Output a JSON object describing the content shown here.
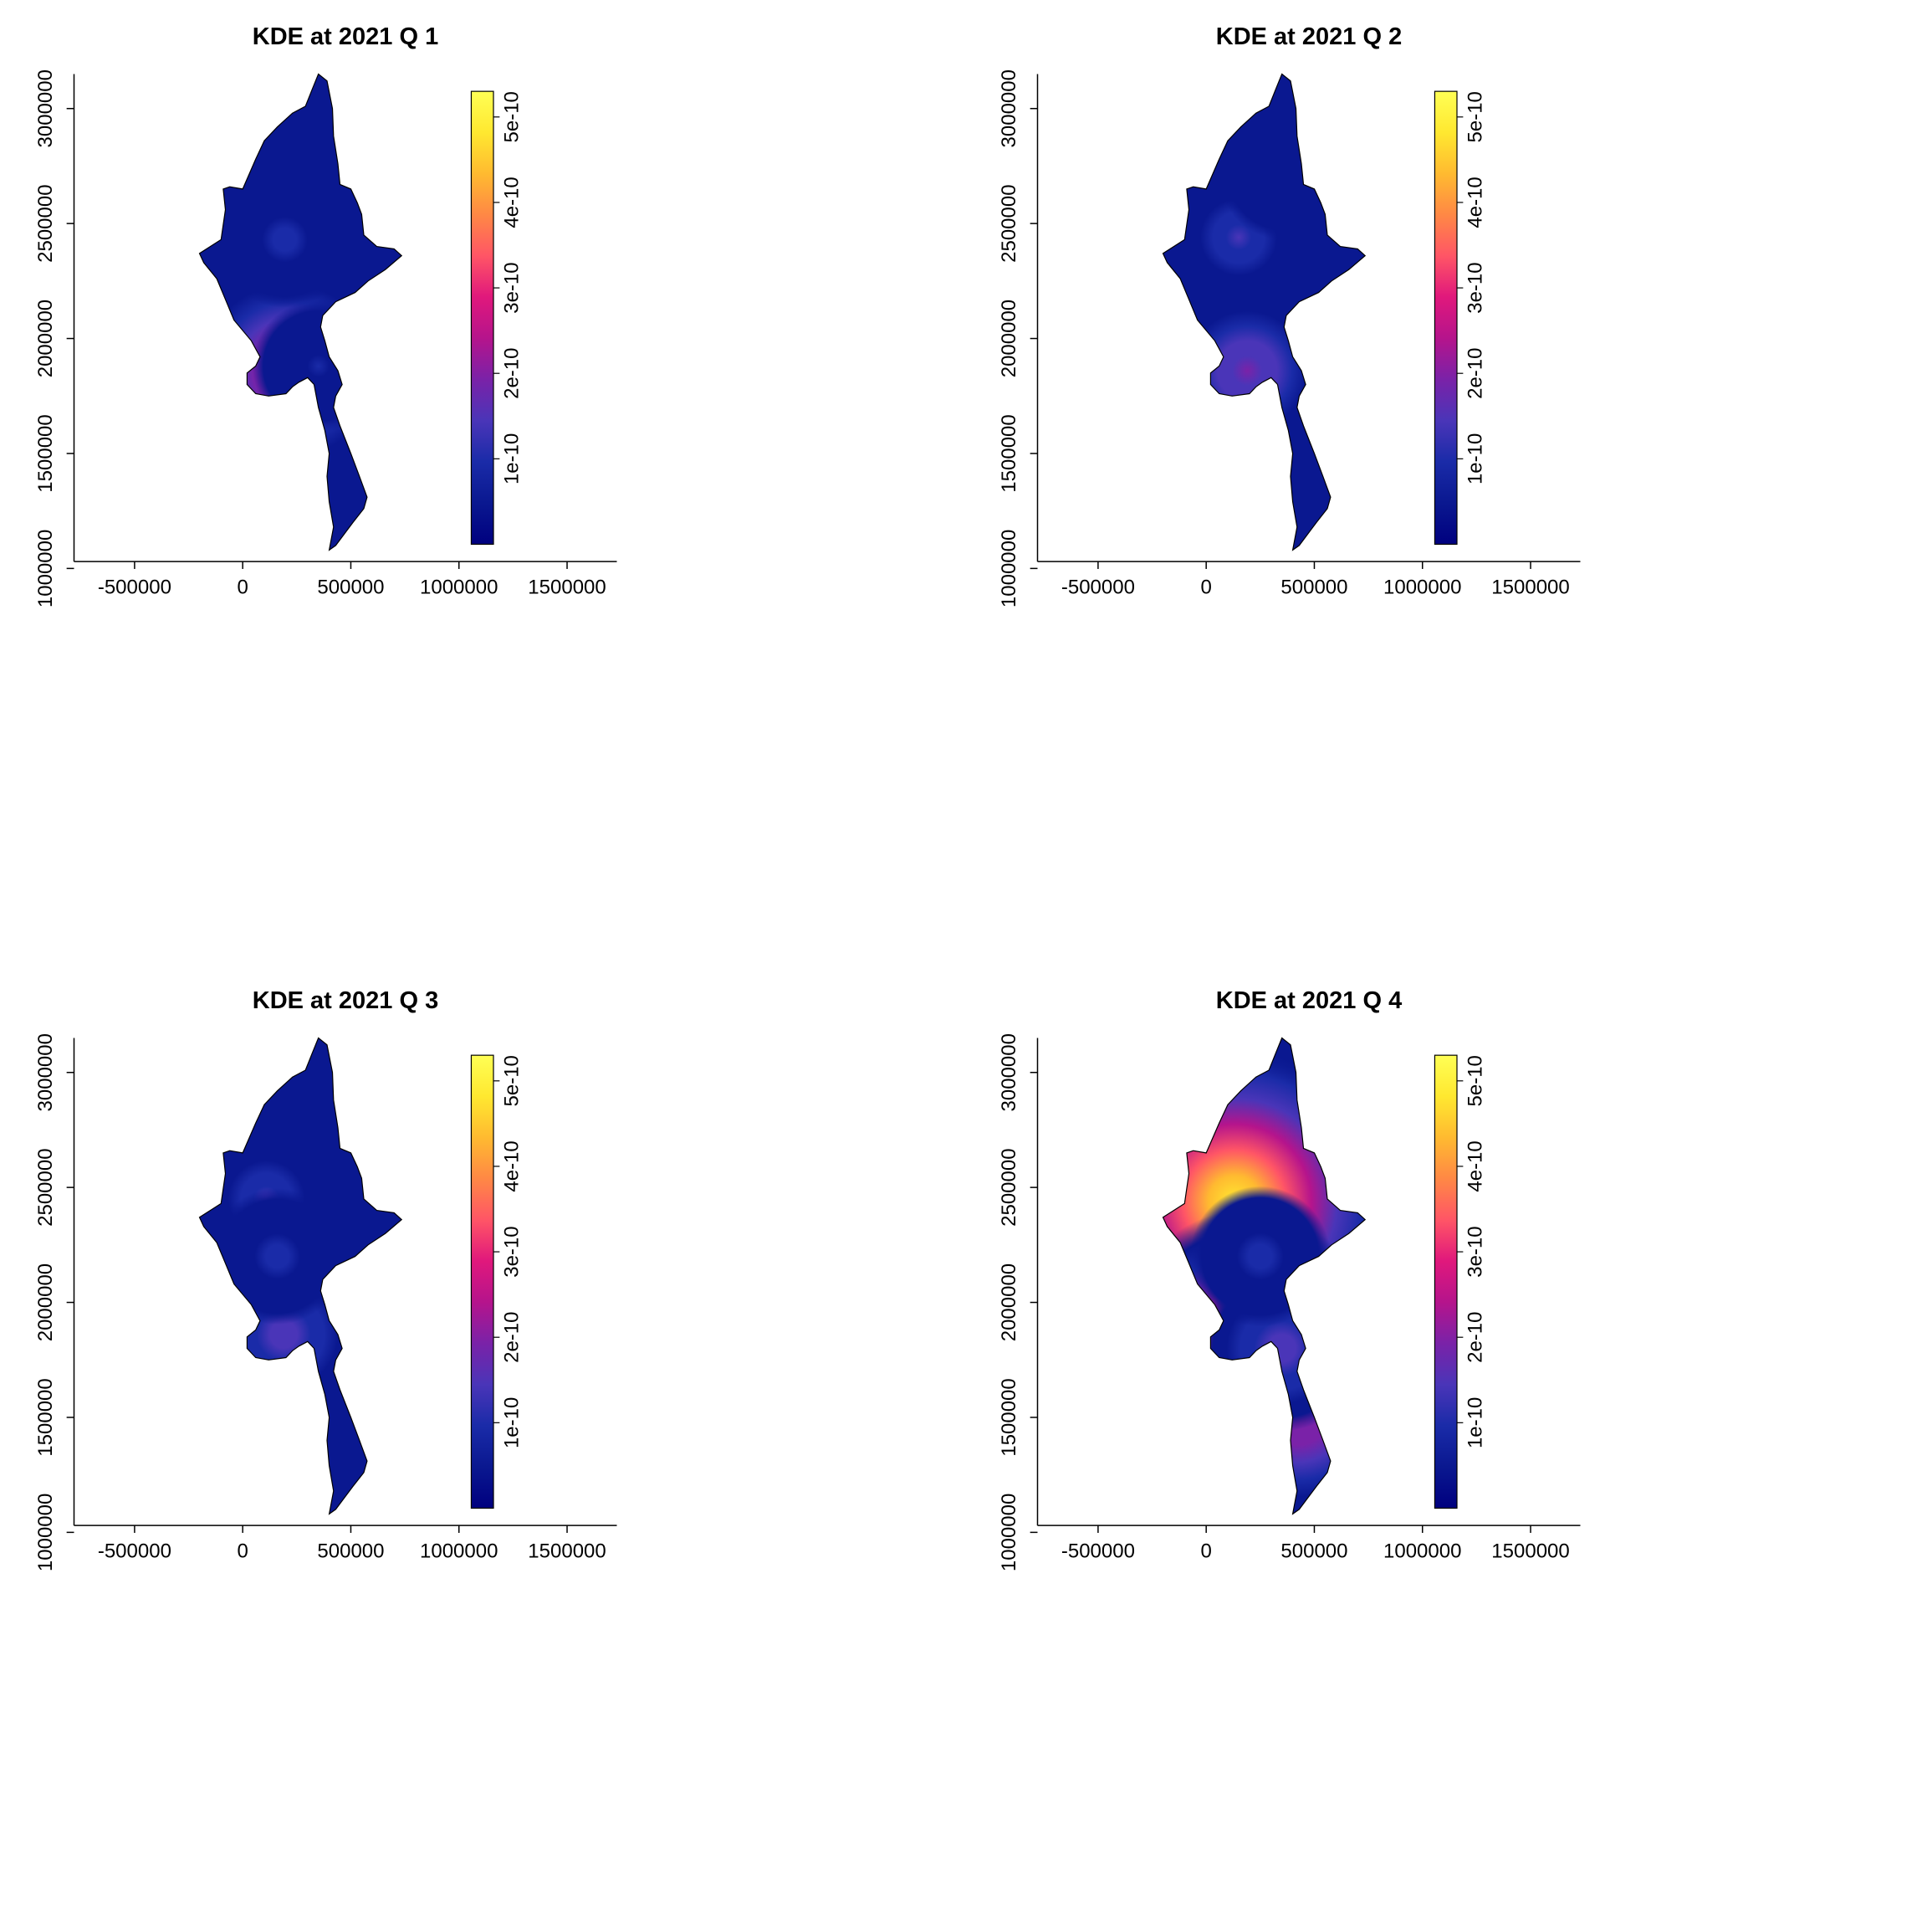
{
  "palette": [
    "#00007f",
    "#0a1890",
    "#1a2ba8",
    "#4a35b8",
    "#7a22a8",
    "#b5148c",
    "#e0187c",
    "#ff5566",
    "#ff8845",
    "#ffba30",
    "#ffe830",
    "#ffff55"
  ],
  "chart_data": [
    {
      "type": "heatmap",
      "title": "KDE at 2021 Q 1",
      "x_ticks": [
        "-500000",
        "0",
        "500000",
        "1000000",
        "1500000"
      ],
      "y_ticks": [
        "1000000",
        "1500000",
        "2000000",
        "2500000",
        "3000000"
      ],
      "colorbar": {
        "ticks": [
          "1e-10",
          "2e-10",
          "3e-10",
          "4e-10",
          "5e-10"
        ],
        "range": [
          0,
          5.3e-10
        ]
      },
      "hotspots": [
        {
          "x": 215000,
          "y": 1860000,
          "peak": 2.6e-10
        },
        {
          "x": 195000,
          "y": 2430000,
          "peak": 9e-11
        },
        {
          "x": 350000,
          "y": 1880000,
          "peak": 8e-11
        }
      ]
    },
    {
      "type": "heatmap",
      "title": "KDE at 2021 Q 2",
      "x_ticks": [
        "-500000",
        "0",
        "500000",
        "1000000",
        "1500000"
      ],
      "y_ticks": [
        "1000000",
        "1500000",
        "2000000",
        "2500000",
        "3000000"
      ],
      "colorbar": {
        "ticks": [
          "1e-10",
          "2e-10",
          "3e-10",
          "4e-10",
          "5e-10"
        ],
        "range": [
          0,
          5.3e-10
        ]
      },
      "hotspots": [
        {
          "x": 150000,
          "y": 2440000,
          "peak": 1.3e-10
        },
        {
          "x": 190000,
          "y": 1860000,
          "peak": 1.9e-10
        },
        {
          "x": 350000,
          "y": 2700000,
          "peak": 6e-11
        }
      ]
    },
    {
      "type": "heatmap",
      "title": "KDE at 2021 Q 3",
      "x_ticks": [
        "-500000",
        "0",
        "500000",
        "1000000",
        "1500000"
      ],
      "y_ticks": [
        "1000000",
        "1500000",
        "2000000",
        "2500000",
        "3000000"
      ],
      "colorbar": {
        "ticks": [
          "1e-10",
          "2e-10",
          "3e-10",
          "4e-10",
          "5e-10"
        ],
        "range": [
          0,
          5.3e-10
        ]
      },
      "hotspots": [
        {
          "x": 110000,
          "y": 2450000,
          "peak": 1.3e-10
        },
        {
          "x": 190000,
          "y": 1860000,
          "peak": 1.5e-10
        },
        {
          "x": 160000,
          "y": 2200000,
          "peak": 9e-11
        }
      ]
    },
    {
      "type": "heatmap",
      "title": "KDE at 2021 Q 4",
      "x_ticks": [
        "-500000",
        "0",
        "500000",
        "1000000",
        "1500000"
      ],
      "y_ticks": [
        "1000000",
        "1500000",
        "2000000",
        "2500000",
        "3000000"
      ],
      "colorbar": {
        "ticks": [
          "1e-10",
          "2e-10",
          "3e-10",
          "4e-10",
          "5e-10"
        ],
        "range": [
          0,
          5.3e-10
        ]
      },
      "hotspots": [
        {
          "x": 130000,
          "y": 2440000,
          "peak": 5e-10
        },
        {
          "x": 190000,
          "y": 1860000,
          "peak": 3.6e-10
        },
        {
          "x": 420000,
          "y": 1530000,
          "peak": 2.6e-10
        },
        {
          "x": 350000,
          "y": 1800000,
          "peak": 1.6e-10
        },
        {
          "x": 250000,
          "y": 2200000,
          "peak": 1e-10
        }
      ]
    }
  ]
}
